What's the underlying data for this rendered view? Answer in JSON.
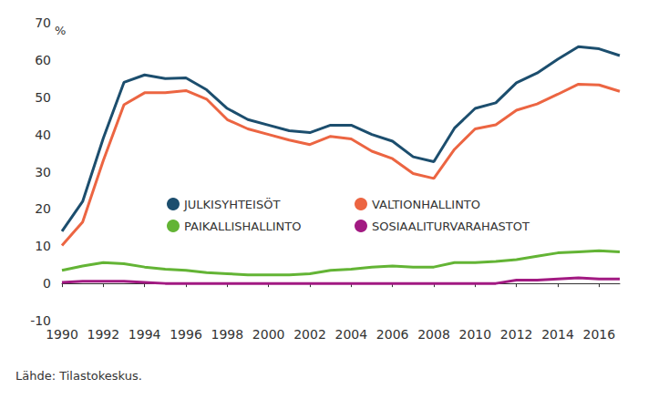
{
  "chart_data": {
    "type": "line",
    "ylabel": "%",
    "source": "Lähde: Tilastokeskus.",
    "categories": [
      "1990",
      null,
      "1992",
      null,
      "1994",
      null,
      "1996",
      null,
      "1998",
      null,
      "2000",
      null,
      "2002",
      null,
      "2004",
      null,
      "2006",
      null,
      "2008",
      null,
      "2010",
      null,
      "2012",
      null,
      "2014",
      null,
      "2016",
      null
    ],
    "series": [
      {
        "name": "JULKISYHTEISÖT",
        "color": "#1c4e6e",
        "values": [
          14,
          22,
          39,
          54,
          56,
          55,
          55.2,
          52,
          47,
          44,
          42.5,
          41,
          40.5,
          42.5,
          42.5,
          40,
          38.2,
          34,
          32.7,
          41.7,
          47,
          48.5,
          53.9,
          56.5,
          60.2,
          63.6,
          63,
          61.2
        ]
      },
      {
        "name": "VALTIONHALLINTO",
        "color": "#ec6542",
        "values": [
          10.2,
          16.5,
          33,
          48,
          51.2,
          51.2,
          51.8,
          49.5,
          44,
          41.5,
          40,
          38.5,
          37.3,
          39.5,
          38.8,
          35.5,
          33.5,
          29.5,
          28.2,
          36,
          41.5,
          42.6,
          46.5,
          48.2,
          50.8,
          53.5,
          53.3,
          51.6
        ]
      },
      {
        "name": "PAIKALLISHALLINTO",
        "color": "#63b435",
        "values": [
          3.5,
          4.7,
          5.6,
          5.3,
          4.4,
          3.8,
          3.5,
          2.9,
          2.6,
          2.3,
          2.3,
          2.3,
          2.6,
          3.5,
          3.8,
          4.4,
          4.7,
          4.4,
          4.4,
          5.6,
          5.6,
          5.9,
          6.4,
          7.3,
          8.2,
          8.5,
          8.8,
          8.5
        ]
      },
      {
        "name": "SOSIAALITURVARAHASTOT",
        "color": "#a21a82",
        "values": [
          0.3,
          0.6,
          0.6,
          0.6,
          0.3,
          0,
          0,
          0,
          0,
          0,
          0,
          0,
          0,
          0,
          0,
          0,
          0,
          0,
          0,
          0,
          0,
          0,
          0.9,
          0.9,
          1.2,
          1.5,
          1.2,
          1.2
        ]
      }
    ],
    "ylim": [
      -10,
      70
    ],
    "yticks": [
      -10,
      0,
      10,
      20,
      30,
      40,
      50,
      60,
      70
    ],
    "grid": false,
    "legend": "center"
  }
}
